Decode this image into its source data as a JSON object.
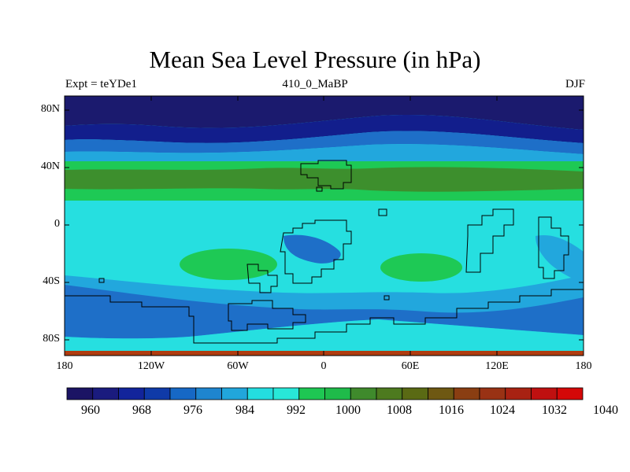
{
  "title": "Mean Sea Level Pressure (in hPa)",
  "subtitle_left": "Expt = teYDe1",
  "subtitle_center": "410_0_MaBP",
  "subtitle_right": "DJF",
  "y_ticks": [
    "80N",
    "40N",
    "0",
    "40S",
    "80S"
  ],
  "x_ticks": [
    "180",
    "120W",
    "60W",
    "0",
    "60E",
    "120E",
    "180"
  ],
  "colorbar": {
    "labels": [
      "960",
      "968",
      "976",
      "984",
      "992",
      "1000",
      "1008",
      "1016",
      "1024",
      "1032",
      "1040"
    ],
    "colors": [
      "#1b1464",
      "#1a1b7e",
      "#12249b",
      "#0f3aa8",
      "#1668c5",
      "#1e85cf",
      "#21a6dc",
      "#23dde0",
      "#28e8d8",
      "#1ec753",
      "#1fbb4a",
      "#3f8a2c",
      "#4d7a1f",
      "#5a6a14",
      "#6e5812",
      "#8a3e12",
      "#993214",
      "#a82212",
      "#bf1010",
      "#d40808"
    ]
  },
  "palette": {
    "band_darkest": "#1b1a6e",
    "band_dark": "#121e8c",
    "band_mid_dark": "#1a3aa6",
    "band_blue": "#1e6fc8",
    "band_light_blue": "#22a7dd",
    "band_cyan": "#26dfe0",
    "band_green": "#3d8f2d",
    "band_bright_green": "#1ec955",
    "band_bottom": "#b03c10"
  }
}
